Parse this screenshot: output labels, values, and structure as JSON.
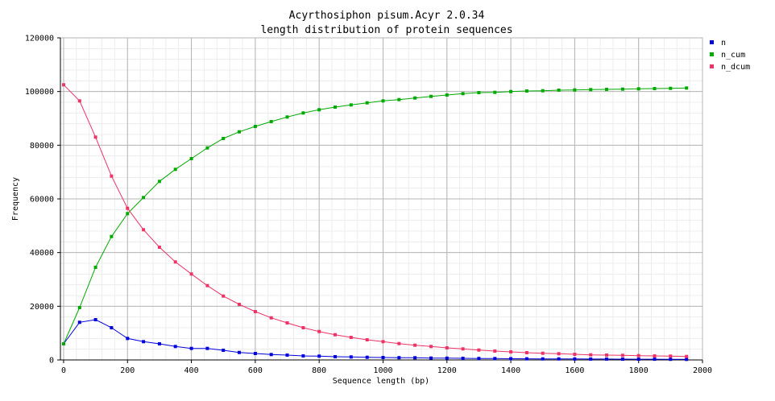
{
  "chart_data": {
    "type": "line",
    "title": "Acyrthosiphon pisum.Acyr 2.0.34",
    "subtitle": "length distribution of protein sequences",
    "xlabel": "Sequence length (bp)",
    "ylabel": "Frequency",
    "xlim": [
      -10,
      2000
    ],
    "ylim": [
      0,
      120000
    ],
    "x_ticks": [
      0,
      200,
      400,
      600,
      800,
      1000,
      1200,
      1400,
      1600,
      1800,
      2000
    ],
    "y_ticks": [
      0,
      20000,
      40000,
      60000,
      80000,
      100000,
      120000
    ],
    "x_tick_labels": [
      "0",
      "200",
      "400",
      "600",
      "800",
      "1000",
      "1200",
      "1400",
      "1600",
      "1800",
      "2000"
    ],
    "y_tick_labels": [
      "0",
      "20000",
      "40000",
      "60000",
      "80000",
      "100000",
      "120000"
    ],
    "grid": true,
    "legend_position": "top-right",
    "x": [
      0,
      50,
      100,
      150,
      200,
      250,
      300,
      350,
      400,
      450,
      500,
      550,
      600,
      650,
      700,
      750,
      800,
      850,
      900,
      950,
      1000,
      1050,
      1100,
      1150,
      1200,
      1250,
      1300,
      1350,
      1400,
      1450,
      1500,
      1550,
      1600,
      1650,
      1700,
      1750,
      1800,
      1850,
      1900,
      1950
    ],
    "series": [
      {
        "name": "n",
        "color": "#0000dd",
        "values": [
          6000,
          14000,
          15000,
          12000,
          8000,
          6800,
          6000,
          5000,
          4300,
          4300,
          3600,
          2800,
          2400,
          2000,
          1800,
          1500,
          1400,
          1200,
          1100,
          1000,
          900,
          850,
          800,
          700,
          650,
          600,
          550,
          500,
          450,
          420,
          400,
          380,
          360,
          340,
          320,
          300,
          280,
          260,
          240,
          220
        ]
      },
      {
        "name": "n_cum",
        "color": "#00aa00",
        "values": [
          6000,
          19500,
          34500,
          46000,
          54500,
          60500,
          66500,
          71000,
          75000,
          79000,
          82500,
          85000,
          87000,
          88800,
          90500,
          92000,
          93200,
          94200,
          95000,
          95800,
          96500,
          97000,
          97600,
          98200,
          98700,
          99200,
          99600,
          99700,
          100000,
          100200,
          100300,
          100500,
          100600,
          100700,
          100800,
          100900,
          101000,
          101100,
          101200,
          101300
        ]
      },
      {
        "name": "n_dcum",
        "color": "#ee3366",
        "values": [
          102500,
          96500,
          83000,
          68500,
          56500,
          48500,
          42000,
          36500,
          32000,
          27700,
          23800,
          20700,
          18000,
          15700,
          13800,
          12000,
          10600,
          9400,
          8400,
          7500,
          6800,
          6100,
          5500,
          5000,
          4500,
          4100,
          3700,
          3300,
          3000,
          2700,
          2500,
          2300,
          2100,
          1900,
          1800,
          1700,
          1600,
          1500,
          1400,
          1300
        ]
      }
    ]
  }
}
